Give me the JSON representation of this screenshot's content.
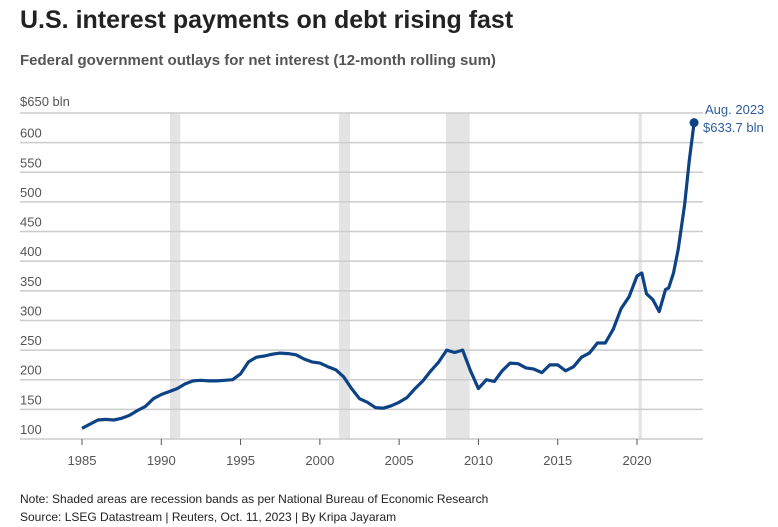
{
  "chart_data": {
    "type": "line",
    "title": "U.S. interest payments on debt rising fast",
    "subtitle": "Federal government outlays for net interest (12-month rolling sum)",
    "ylabel": "$650 bln",
    "ylim": [
      100,
      650
    ],
    "xlim": [
      1984.5,
      2024.1
    ],
    "y_ticks": [
      100,
      150,
      200,
      250,
      300,
      350,
      400,
      450,
      500,
      550,
      600
    ],
    "y_top_label": "$650 bln",
    "x_ticks": [
      1985,
      1990,
      1995,
      2000,
      2005,
      2010,
      2015,
      2020
    ],
    "grid": true,
    "recessions": [
      [
        1990.55,
        1991.2
      ],
      [
        2001.2,
        2001.9
      ],
      [
        2007.95,
        2009.45
      ],
      [
        2020.1,
        2020.3
      ]
    ],
    "colors": {
      "line": "#0d4285",
      "annotation": "#2f5c99",
      "band": "#e4e4e4",
      "grid": "#cccccc"
    },
    "series": [
      {
        "name": "Net interest outlays",
        "x": [
          1985,
          1985.5,
          1986,
          1986.5,
          1987,
          1987.5,
          1988,
          1988.5,
          1989,
          1989.5,
          1990,
          1990.5,
          1991,
          1991.5,
          1992,
          1992.5,
          1993,
          1993.5,
          1994,
          1994.5,
          1995,
          1995.5,
          1996,
          1996.5,
          1997,
          1997.5,
          1998,
          1998.5,
          1999,
          1999.5,
          2000,
          2000.5,
          2001,
          2001.5,
          2002,
          2002.5,
          2003,
          2003.5,
          2004,
          2004.5,
          2005,
          2005.5,
          2006,
          2006.5,
          2007,
          2007.5,
          2008,
          2008.5,
          2009,
          2009.5,
          2010,
          2010.5,
          2011,
          2011.5,
          2012,
          2012.5,
          2013,
          2013.5,
          2014,
          2014.5,
          2015,
          2015.5,
          2016,
          2016.5,
          2017,
          2017.5,
          2018,
          2018.5,
          2019,
          2019.5,
          2020,
          2020.3,
          2020.6,
          2021,
          2021.4,
          2021.8,
          2022,
          2022.3,
          2022.6,
          2023,
          2023.3,
          2023.6
        ],
        "values": [
          118,
          125,
          132,
          133,
          132,
          135,
          140,
          148,
          155,
          168,
          175,
          180,
          185,
          193,
          198,
          199,
          198,
          198,
          199,
          200,
          210,
          230,
          238,
          240,
          243,
          245,
          244,
          242,
          235,
          230,
          228,
          222,
          217,
          205,
          185,
          168,
          162,
          153,
          152,
          156,
          162,
          170,
          185,
          198,
          215,
          230,
          250,
          246,
          250,
          215,
          185,
          200,
          197,
          215,
          228,
          227,
          220,
          218,
          212,
          225,
          225,
          215,
          222,
          238,
          245,
          262,
          262,
          285,
          320,
          340,
          375,
          380,
          345,
          335,
          315,
          352,
          355,
          380,
          420,
          495,
          570,
          633.7
        ]
      }
    ],
    "annotation": {
      "label": "Aug. 2023",
      "value_label": "$633.7 bln",
      "x": 2023.6,
      "y": 633.7
    }
  },
  "note": "Note: Shaded areas are recession bands as per National Bureau of Economic Research",
  "source": "Source: LSEG Datastream | Reuters, Oct. 11, 2023 | By Kripa Jayaram"
}
